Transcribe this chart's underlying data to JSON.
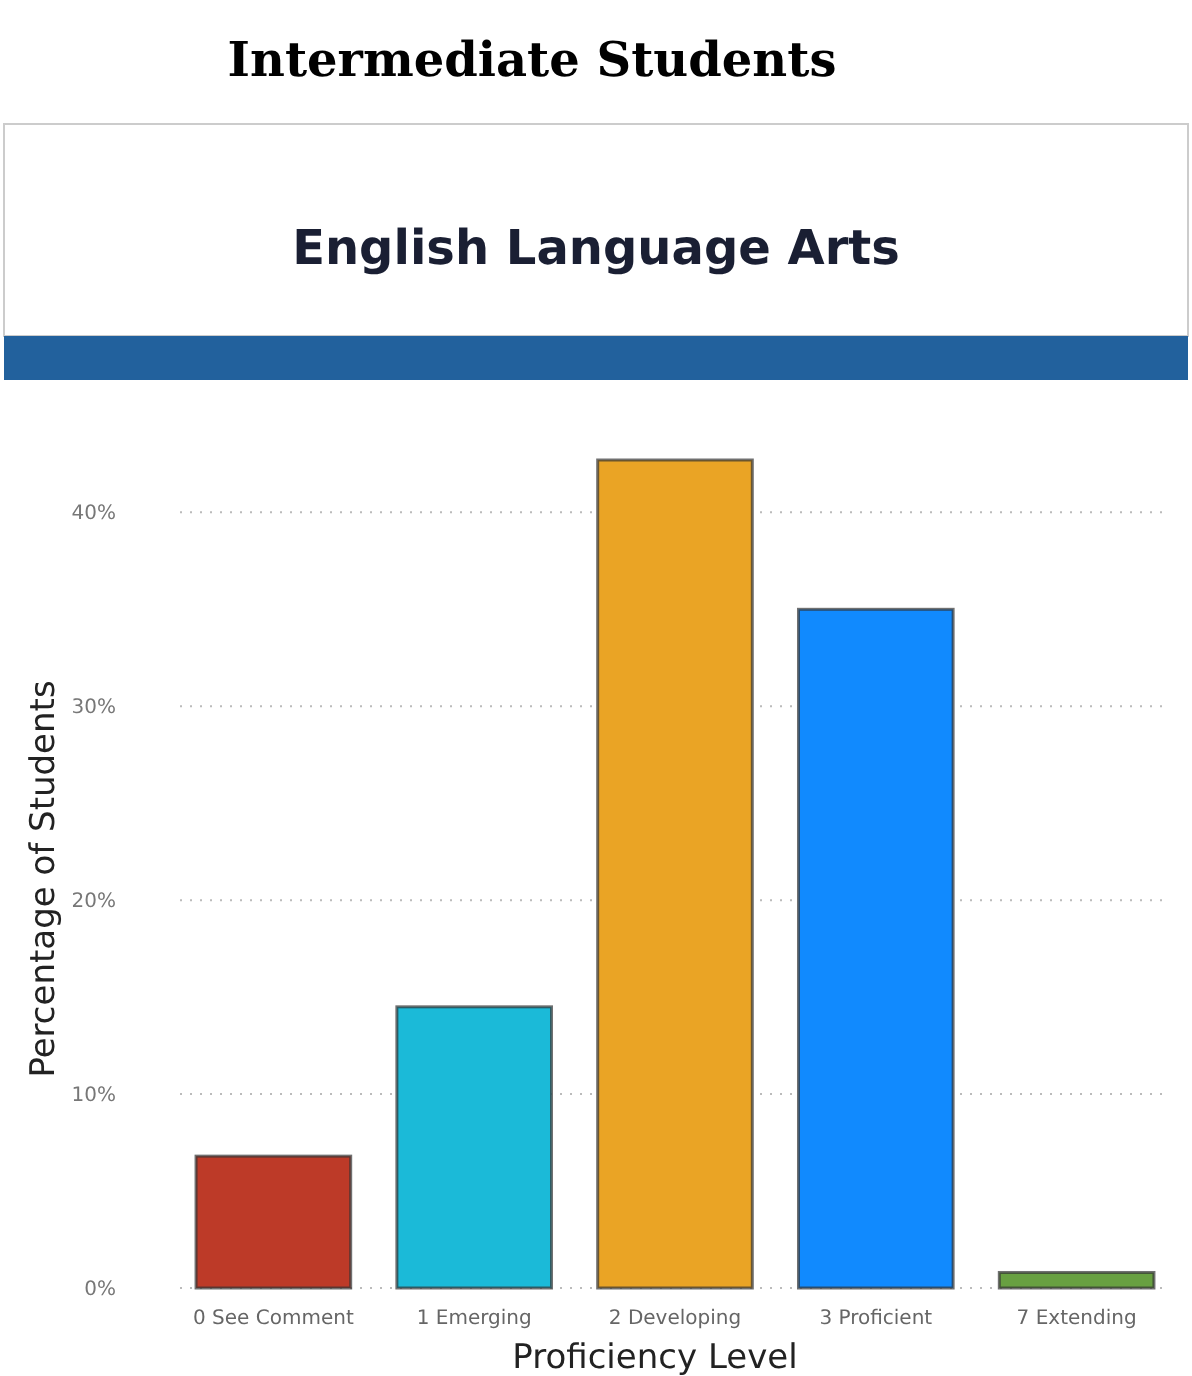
{
  "chart_data": {
    "type": "bar",
    "title": "Intermediate Students",
    "subtitle": "English Language Arts",
    "xlabel": "Proficiency Level",
    "ylabel": "Percentage of Students",
    "categories": [
      "0 See Comment",
      "1 Emerging",
      "2 Developing",
      "3 Proficient",
      "7 Extending"
    ],
    "values": [
      6.8,
      14.5,
      42.7,
      35.0,
      0.8
    ],
    "ylim": [
      0,
      42.7
    ],
    "colors": [
      "#bd3a28",
      "#1bbad8",
      "#eaa425",
      "#118afe",
      "#68a041"
    ],
    "yticks": [
      {
        "value": 0,
        "label": "0%"
      },
      {
        "value": 10,
        "label": "10%"
      },
      {
        "value": 20,
        "label": "20%"
      },
      {
        "value": 30,
        "label": "30%"
      },
      {
        "value": 40,
        "label": "40%"
      }
    ],
    "grid": "y"
  }
}
